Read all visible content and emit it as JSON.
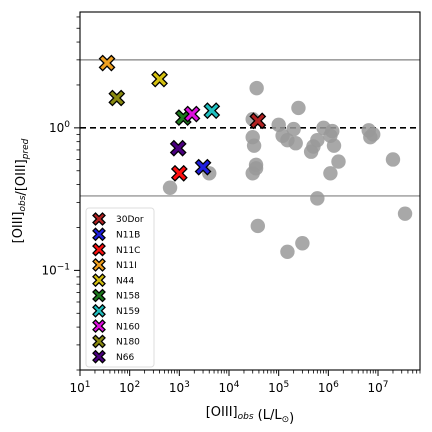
{
  "chart_data": {
    "type": "scatter",
    "title": "",
    "x_scale": "log",
    "y_scale": "log",
    "xlim": [
      10,
      70000000
    ],
    "ylim": [
      0.02,
      6.5
    ],
    "grid": false,
    "legend_placement": "lower-left",
    "xlabel": "[OIII]obs (L/L⊙)",
    "ylabel": "[OIII]obs/[OIII]pred",
    "x_ticks": [
      {
        "value": 10,
        "base": "10",
        "exp": "1"
      },
      {
        "value": 100,
        "base": "10",
        "exp": "2"
      },
      {
        "value": 1000,
        "base": "10",
        "exp": "3"
      },
      {
        "value": 10000,
        "base": "10",
        "exp": "4"
      },
      {
        "value": 100000,
        "base": "10",
        "exp": "5"
      },
      {
        "value": 1000000,
        "base": "10",
        "exp": "6"
      },
      {
        "value": 10000000,
        "base": "10",
        "exp": "7"
      }
    ],
    "y_ticks": [
      {
        "value": 0.1,
        "base": "10",
        "exp": "−1"
      },
      {
        "value": 1,
        "base": "10",
        "exp": "0"
      }
    ],
    "reference_lines": [
      {
        "y": 1.0,
        "style": "dashed",
        "color": "#000000"
      },
      {
        "y": 3.0,
        "style": "solid",
        "color": "#808080"
      },
      {
        "y": 0.333,
        "style": "solid",
        "color": "#808080"
      }
    ],
    "series": [
      {
        "name": "30Dor",
        "color": "#b22222",
        "marker": "x",
        "points": [
          [
            38000,
            1.12
          ]
        ]
      },
      {
        "name": "N11B",
        "color": "#1f1fdf",
        "marker": "x",
        "points": [
          [
            3000,
            0.53
          ]
        ]
      },
      {
        "name": "N11C",
        "color": "#ff1010",
        "marker": "x",
        "points": [
          [
            1000,
            0.48
          ]
        ]
      },
      {
        "name": "N11I",
        "color": "#f0a020",
        "marker": "x",
        "points": [
          [
            35,
            2.85
          ]
        ]
      },
      {
        "name": "N44",
        "color": "#d4c010",
        "marker": "x",
        "points": [
          [
            400,
            2.2
          ]
        ]
      },
      {
        "name": "N158",
        "color": "#1e7a1e",
        "marker": "x",
        "points": [
          [
            1200,
            1.18
          ]
        ]
      },
      {
        "name": "N159",
        "color": "#20c0c0",
        "marker": "x",
        "points": [
          [
            4500,
            1.32
          ]
        ]
      },
      {
        "name": "N160",
        "color": "#e010e0",
        "marker": "x",
        "points": [
          [
            1800,
            1.25
          ]
        ]
      },
      {
        "name": "N180",
        "color": "#8a8a10",
        "marker": "x",
        "points": [
          [
            55,
            1.62
          ]
        ]
      },
      {
        "name": "N66",
        "color": "#4b0080",
        "marker": "x",
        "points": [
          [
            950,
            0.72
          ]
        ]
      },
      {
        "name": "",
        "color": "#999999",
        "marker": "circle",
        "points": [
          [
            650,
            0.38
          ],
          [
            4000,
            0.48
          ],
          [
            30000,
            1.15
          ],
          [
            30000,
            0.86
          ],
          [
            32000,
            0.75
          ],
          [
            35000,
            0.55
          ],
          [
            30000,
            0.48
          ],
          [
            35000,
            0.52
          ],
          [
            36000,
            1.9
          ],
          [
            38000,
            0.205
          ],
          [
            250000,
            1.38
          ],
          [
            100000,
            1.05
          ],
          [
            120000,
            0.88
          ],
          [
            150000,
            0.82
          ],
          [
            200000,
            0.98
          ],
          [
            220000,
            0.78
          ],
          [
            150000,
            0.135
          ],
          [
            300000,
            0.155
          ],
          [
            450000,
            0.68
          ],
          [
            500000,
            0.74
          ],
          [
            600000,
            0.82
          ],
          [
            600000,
            0.32
          ],
          [
            800000,
            1.0
          ],
          [
            1100000,
            0.88
          ],
          [
            1200000,
            0.95
          ],
          [
            1300000,
            0.75
          ],
          [
            1100000,
            0.48
          ],
          [
            1600000,
            0.58
          ],
          [
            6500000,
            0.96
          ],
          [
            7000000,
            0.86
          ],
          [
            8000000,
            0.9
          ],
          [
            20000000,
            0.6
          ],
          [
            35000000,
            0.25
          ]
        ]
      }
    ]
  }
}
